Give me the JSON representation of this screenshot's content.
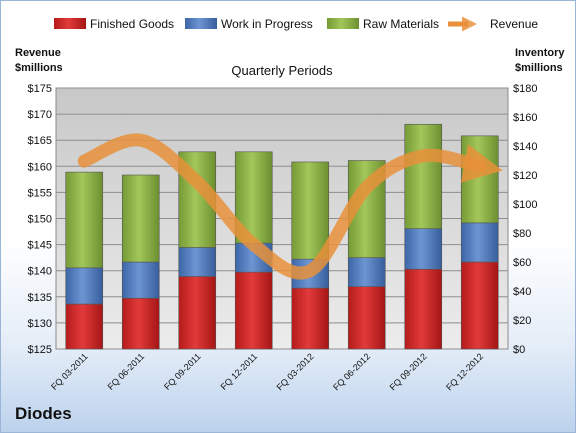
{
  "company": "Diodes",
  "chart_data": {
    "type": "bar",
    "stacked": true,
    "subtitle": "Quarterly Periods",
    "categories": [
      "FQ 03-2011",
      "FQ 06-2011",
      "FQ 09-2011",
      "FQ 12-2011",
      "FQ 03-2012",
      "FQ 06-2012",
      "FQ 09-2012",
      "FQ 12-2012"
    ],
    "series": [
      {
        "name": "Finished Goods",
        "color": "#d42a2a",
        "values": [
          31,
          35,
          50,
          53,
          42,
          43,
          55,
          60
        ]
      },
      {
        "name": "Work in Progress",
        "color": "#4f7dc2",
        "values": [
          25,
          25,
          20,
          20,
          20,
          20,
          28,
          27
        ]
      },
      {
        "name": "Raw Materials",
        "color": "#8db144",
        "values": [
          66,
          60,
          66,
          63,
          67,
          67,
          72,
          60
        ]
      }
    ],
    "line_series": {
      "name": "Revenue",
      "color": "#e8903a",
      "values": [
        161,
        165,
        157,
        145,
        140,
        156,
        162,
        160
      ]
    },
    "left_axis": {
      "title_line1": "Revenue",
      "title_line2": "$millions",
      "ylim": [
        125,
        175
      ],
      "ticks": [
        "$125",
        "$130",
        "$135",
        "$140",
        "$145",
        "$150",
        "$155",
        "$160",
        "$165",
        "$170",
        "$175"
      ]
    },
    "right_axis": {
      "title_line1": "Inventory",
      "title_line2": "$millions",
      "ylim": [
        0,
        180
      ],
      "ticks": [
        "$0",
        "$20",
        "$40",
        "$60",
        "$80",
        "$100",
        "$120",
        "$140",
        "$160",
        "$180"
      ]
    },
    "legend_position": "top",
    "grid": true
  }
}
